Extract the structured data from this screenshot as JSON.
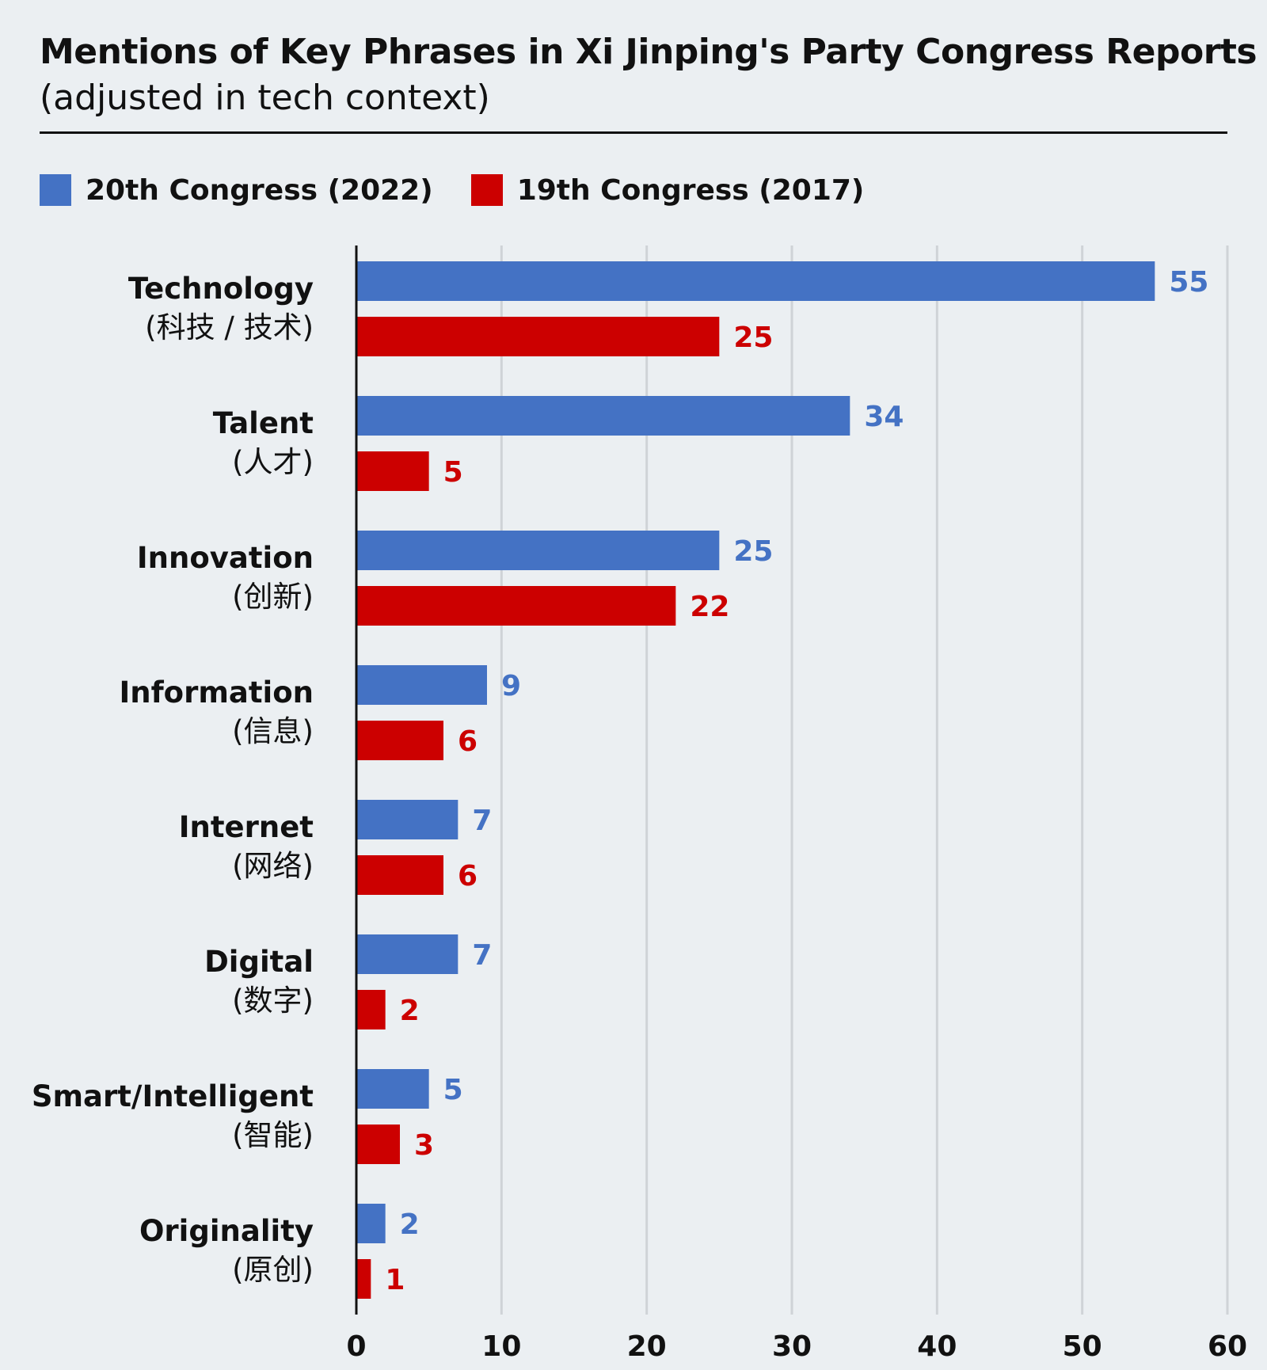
{
  "header": {
    "title": "Mentions of Key Phrases in Xi Jinping's Party Congress Reports",
    "subtitle": "(adjusted in tech context)"
  },
  "colors": {
    "series_2022": "#4472c4",
    "series_2017": "#cc0000",
    "grid": "#cfd3d7",
    "axis": "#111111"
  },
  "chart_data": {
    "type": "bar",
    "orientation": "horizontal",
    "title": "Mentions of Key Phrases in Xi Jinping's Party Congress Reports",
    "subtitle": "(adjusted in tech context)",
    "xlabel": "",
    "ylabel": "",
    "xlim": [
      0,
      60
    ],
    "xticks": [
      0,
      10,
      20,
      30,
      40,
      50,
      60
    ],
    "grid": true,
    "legend_position": "top-left",
    "categories": [
      {
        "name": "Technology",
        "sub": "(科技 / 技术)"
      },
      {
        "name": "Talent",
        "sub": "(人才)"
      },
      {
        "name": "Innovation",
        "sub": "(创新)"
      },
      {
        "name": "Information",
        "sub": "(信息)"
      },
      {
        "name": "Internet",
        "sub": "(网络)"
      },
      {
        "name": "Digital",
        "sub": "(数字)"
      },
      {
        "name": "Smart/Intelligent",
        "sub": "(智能)"
      },
      {
        "name": "Originality",
        "sub": "(原创)"
      }
    ],
    "series": [
      {
        "name": "20th Congress (2022)",
        "color": "#4472c4",
        "values": [
          55,
          34,
          25,
          9,
          7,
          7,
          5,
          2
        ]
      },
      {
        "name": "19th Congress (2017)",
        "color": "#cc0000",
        "values": [
          25,
          5,
          22,
          6,
          6,
          2,
          3,
          1
        ]
      }
    ]
  }
}
